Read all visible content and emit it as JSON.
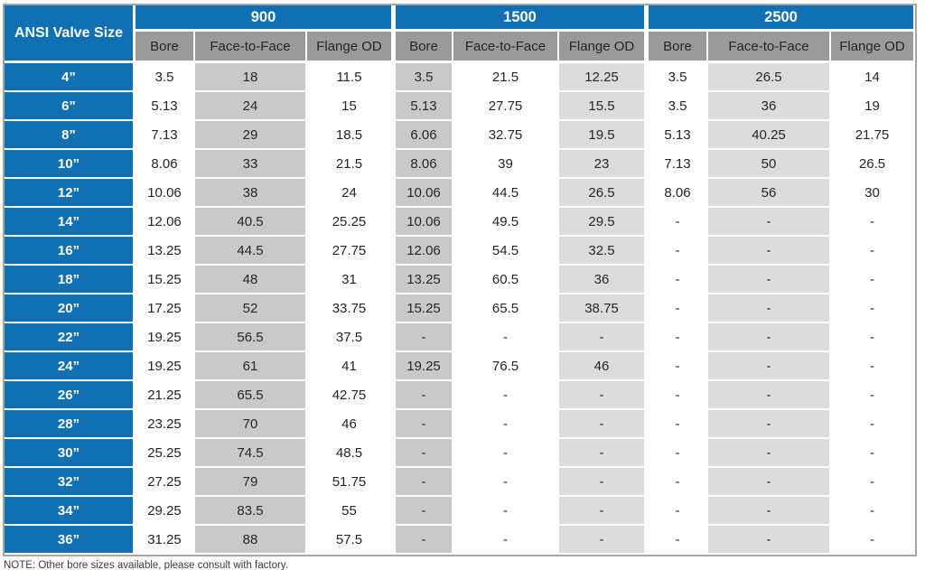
{
  "colors": {
    "header_blue": "#1170B3",
    "subheader_gray": "#9A9A9A",
    "column_gray_dark": "#C9C9C9",
    "column_gray_light": "#DCDCDC",
    "cell_text": "#262626",
    "table_border": "#A6A6A6",
    "note_text": "#3C3C3C"
  },
  "chart_data": {
    "type": "table",
    "corner_header": "ANSI Valve Size",
    "column_groups": [
      "900",
      "1500",
      "2500"
    ],
    "sub_columns": [
      "Bore",
      "Face-to-Face",
      "Flange OD"
    ],
    "rows": [
      {
        "size": "4”",
        "values": [
          "3.5",
          "18",
          "11.5",
          "3.5",
          "21.5",
          "12.25",
          "3.5",
          "26.5",
          "14"
        ]
      },
      {
        "size": "6”",
        "values": [
          "5.13",
          "24",
          "15",
          "5.13",
          "27.75",
          "15.5",
          "3.5",
          "36",
          "19"
        ]
      },
      {
        "size": "8”",
        "values": [
          "7.13",
          "29",
          "18.5",
          "6.06",
          "32.75",
          "19.5",
          "5.13",
          "40.25",
          "21.75"
        ]
      },
      {
        "size": "10”",
        "values": [
          "8.06",
          "33",
          "21.5",
          "8.06",
          "39",
          "23",
          "7.13",
          "50",
          "26.5"
        ]
      },
      {
        "size": "12”",
        "values": [
          "10.06",
          "38",
          "24",
          "10.06",
          "44.5",
          "26.5",
          "8.06",
          "56",
          "30"
        ]
      },
      {
        "size": "14”",
        "values": [
          "12.06",
          "40.5",
          "25.25",
          "10.06",
          "49.5",
          "29.5",
          "-",
          "-",
          "-"
        ]
      },
      {
        "size": "16”",
        "values": [
          "13.25",
          "44.5",
          "27.75",
          "12.06",
          "54.5",
          "32.5",
          "-",
          "-",
          "-"
        ]
      },
      {
        "size": "18”",
        "values": [
          "15.25",
          "48",
          "31",
          "13.25",
          "60.5",
          "36",
          "-",
          "-",
          "-"
        ]
      },
      {
        "size": "20”",
        "values": [
          "17.25",
          "52",
          "33.75",
          "15.25",
          "65.5",
          "38.75",
          "-",
          "-",
          "-"
        ]
      },
      {
        "size": "22”",
        "values": [
          "19.25",
          "56.5",
          "37.5",
          "-",
          "-",
          "-",
          "-",
          "-",
          "-"
        ]
      },
      {
        "size": "24”",
        "values": [
          "19.25",
          "61",
          "41",
          "19.25",
          "76.5",
          "46",
          "-",
          "-",
          "-"
        ]
      },
      {
        "size": "26”",
        "values": [
          "21.25",
          "65.5",
          "42.75",
          "-",
          "-",
          "-",
          "-",
          "-",
          "-"
        ]
      },
      {
        "size": "28”",
        "values": [
          "23.25",
          "70",
          "46",
          "-",
          "-",
          "-",
          "-",
          "-",
          "-"
        ]
      },
      {
        "size": "30”",
        "values": [
          "25.25",
          "74.5",
          "48.5",
          "-",
          "-",
          "-",
          "-",
          "-",
          "-"
        ]
      },
      {
        "size": "32”",
        "values": [
          "27.25",
          "79",
          "51.75",
          "-",
          "-",
          "-",
          "-",
          "-",
          "-"
        ]
      },
      {
        "size": "34”",
        "values": [
          "29.25",
          "83.5",
          "55",
          "-",
          "-",
          "-",
          "-",
          "-",
          "-"
        ]
      },
      {
        "size": "36”",
        "values": [
          "31.25",
          "88",
          "57.5",
          "-",
          "-",
          "-",
          "-",
          "-",
          "-"
        ]
      }
    ],
    "note": "NOTE: Other bore sizes available, please consult with factory."
  }
}
